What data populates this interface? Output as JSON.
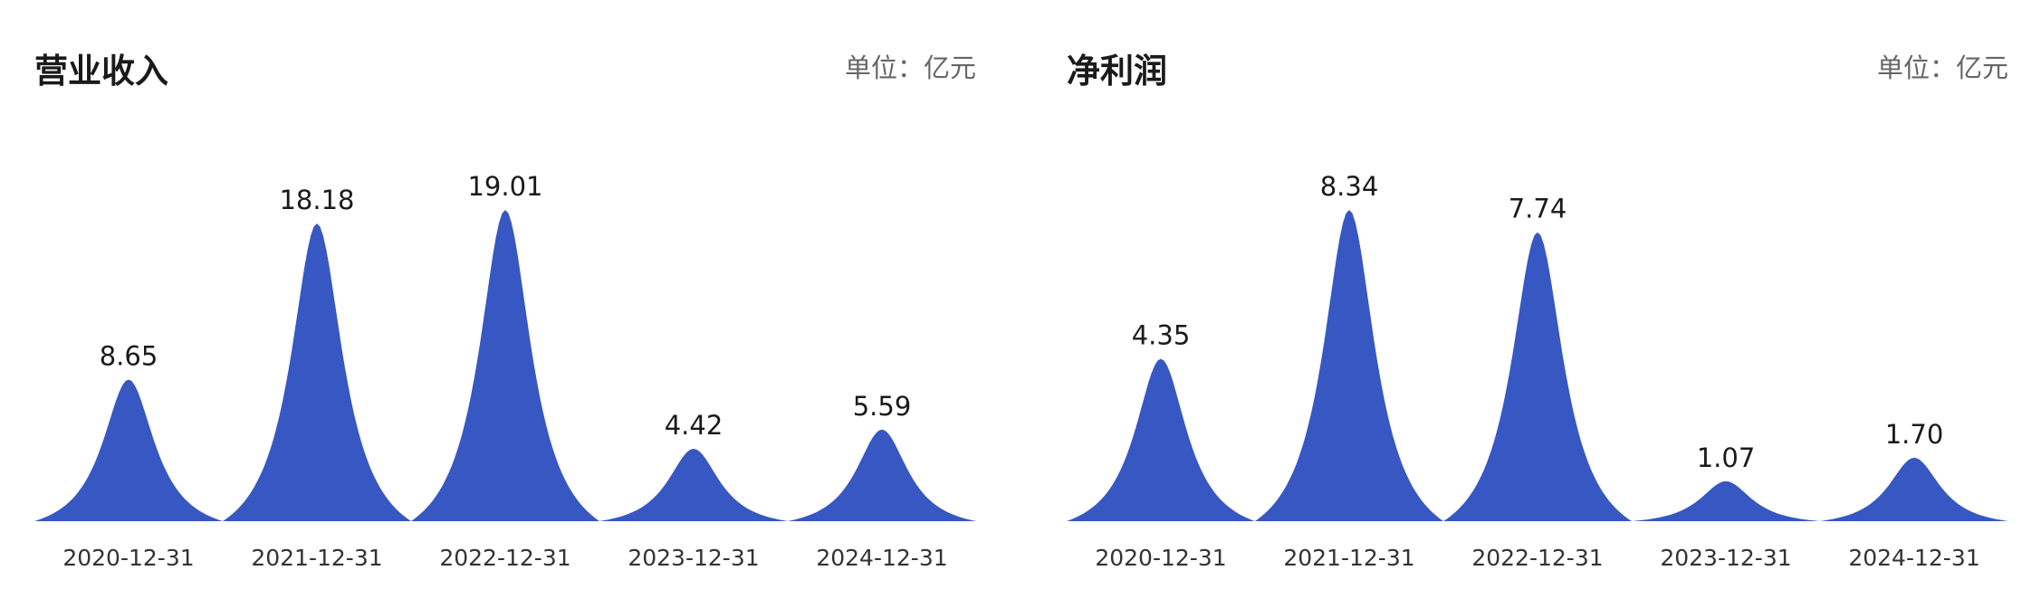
{
  "colors": {
    "peak": "#3757c3",
    "title": "#1a1a1a",
    "unit": "#666666",
    "tick": "#333333"
  },
  "chart_data": [
    {
      "type": "area",
      "title": "营业收入",
      "unit": "单位：亿元",
      "categories": [
        "2020-12-31",
        "2021-12-31",
        "2022-12-31",
        "2023-12-31",
        "2024-12-31"
      ],
      "values": [
        8.65,
        18.18,
        19.01,
        4.42,
        5.59
      ],
      "value_labels": [
        "8.65",
        "18.18",
        "19.01",
        "4.42",
        "5.59"
      ],
      "ylim": [
        0,
        19.01
      ],
      "grid": false,
      "legend": "none"
    },
    {
      "type": "area",
      "title": "净利润",
      "unit": "单位：亿元",
      "categories": [
        "2020-12-31",
        "2021-12-31",
        "2022-12-31",
        "2023-12-31",
        "2024-12-31"
      ],
      "values": [
        4.35,
        8.34,
        7.74,
        1.07,
        1.7
      ],
      "value_labels": [
        "4.35",
        "8.34",
        "7.74",
        "1.07",
        "1.70"
      ],
      "ylim": [
        0,
        8.34
      ],
      "grid": false,
      "legend": "none"
    }
  ]
}
